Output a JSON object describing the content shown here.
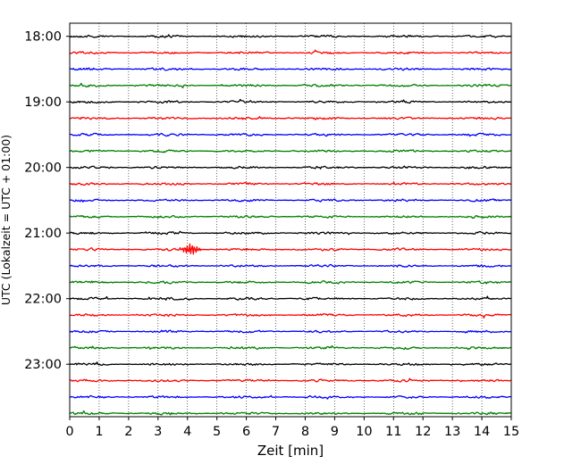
{
  "chart_data": {
    "type": "line",
    "title": "",
    "subtitle": "",
    "xlabel": "Zeit  [min]",
    "ylabel": "UTC (Lokalzeit = UTC + 01:00)",
    "xlim": [
      0,
      15
    ],
    "x_ticks": [
      0,
      1,
      2,
      3,
      4,
      5,
      6,
      7,
      8,
      9,
      10,
      11,
      12,
      13,
      14,
      15
    ],
    "x_tick_labels": [
      "0",
      "1",
      "2",
      "3",
      "4",
      "5",
      "6",
      "7",
      "8",
      "9",
      "10",
      "11",
      "12",
      "13",
      "14",
      "15"
    ],
    "y_tick_labels": [
      "18:00",
      "19:00",
      "20:00",
      "21:00",
      "22:00",
      "23:00"
    ],
    "y_range": [
      "17:48",
      "23:48"
    ],
    "trace_interval_minutes": 15,
    "grid": "vertical dotted at each minute",
    "legend": "none",
    "color_cycle": [
      "#000000",
      "#ff0000",
      "#0000ff",
      "#007f00"
    ],
    "traces": [
      {
        "start": "18:00",
        "color": "#000000"
      },
      {
        "start": "18:15",
        "color": "#ff0000"
      },
      {
        "start": "18:30",
        "color": "#0000ff"
      },
      {
        "start": "18:45",
        "color": "#007f00"
      },
      {
        "start": "19:00",
        "color": "#000000"
      },
      {
        "start": "19:15",
        "color": "#ff0000"
      },
      {
        "start": "19:30",
        "color": "#0000ff"
      },
      {
        "start": "19:45",
        "color": "#007f00"
      },
      {
        "start": "20:00",
        "color": "#000000"
      },
      {
        "start": "20:15",
        "color": "#ff0000"
      },
      {
        "start": "20:30",
        "color": "#0000ff"
      },
      {
        "start": "20:45",
        "color": "#007f00"
      },
      {
        "start": "21:00",
        "color": "#000000"
      },
      {
        "start": "21:15",
        "color": "#ff0000",
        "event_minute": 4.1
      },
      {
        "start": "21:30",
        "color": "#0000ff"
      },
      {
        "start": "21:45",
        "color": "#007f00"
      },
      {
        "start": "22:00",
        "color": "#000000"
      },
      {
        "start": "22:15",
        "color": "#ff0000"
      },
      {
        "start": "22:30",
        "color": "#0000ff"
      },
      {
        "start": "22:45",
        "color": "#007f00"
      },
      {
        "start": "23:00",
        "color": "#000000"
      },
      {
        "start": "23:15",
        "color": "#ff0000"
      },
      {
        "start": "23:30",
        "color": "#0000ff"
      },
      {
        "start": "23:45",
        "color": "#007f00"
      }
    ]
  }
}
